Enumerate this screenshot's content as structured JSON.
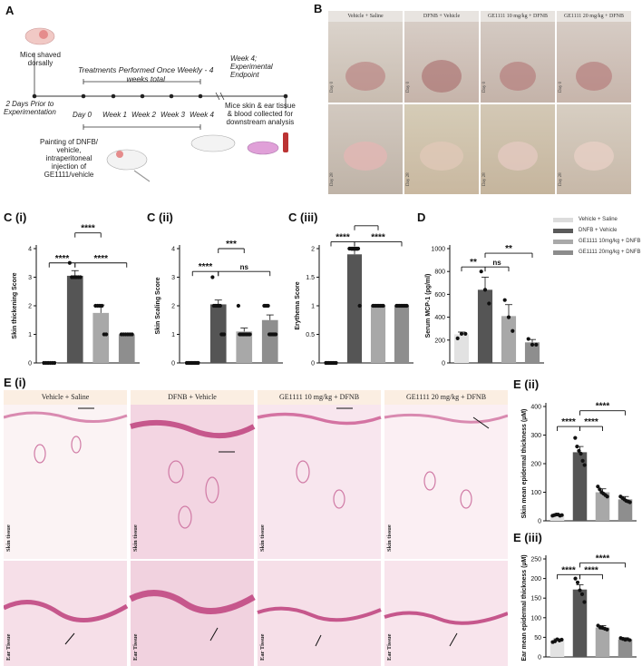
{
  "panel_labels": {
    "A": "A",
    "B": "B",
    "Ci": "C (i)",
    "Cii": "C (ii)",
    "Ciii": "C (iii)",
    "D": "D",
    "Ei": "E (i)",
    "Eii": "E (ii)",
    "Eiii": "E (iii)"
  },
  "schematic": {
    "shaved": "Mice shaved\ndorsally",
    "prior": "2 Days Prior to\nExperimentation",
    "treatments": "Treatments Performed Once Weekly - 4\nweeks total",
    "endpoint": "Week 4;\nExperimental\nEndpoint",
    "timepoints": [
      "Day 0",
      "Week 1",
      "Week 2",
      "Week 3",
      "Week 4"
    ],
    "painting": "Painting of DNFB/\nvehicle,\nintraperitoneal\ninjection of\nGE1111/vehicle",
    "collected": "Mice skin & ear tissue\n& blood collected for\ndownstream analysis"
  },
  "photos": {
    "headers": [
      "Vehicle + Saline",
      "DFNB + Vehicle",
      "GE1111 10 mg/kg + DFNB",
      "GE1111 20 mg/kg + DFNB"
    ],
    "days": [
      "Day 0",
      "Day 28"
    ]
  },
  "histology": {
    "headers": [
      "Vehicle + Saline",
      "DFNB + Vehicle",
      "GE1111 10 mg/kg + DFNB",
      "GE1111 20 mg/kg + DFNB"
    ],
    "row_labels": [
      "Skin tissue",
      "Ear Tissue"
    ]
  },
  "legend": {
    "items": [
      {
        "name": "Vehicle + Saline",
        "color": "#dcdcdc"
      },
      {
        "name": "DNFB + Vehicle",
        "color": "#5a5a5a"
      },
      {
        "name": "GE1111 10mg/kg + DNFB",
        "color": "#a9a9a9"
      },
      {
        "name": "GE1111 20mg/kg + DNFB",
        "color": "#8c8c8c"
      }
    ]
  },
  "colors": {
    "bar_colors": [
      "#e2e2e2",
      "#555555",
      "#a8a8a8",
      "#8e8e8e"
    ],
    "skin_pink": "#e9a9c9",
    "photo_bg": "#cfc6bd"
  },
  "chart_data": [
    {
      "id": "Ci",
      "type": "bar",
      "ylabel": "Skin thickening Score",
      "ylim": [
        0,
        4
      ],
      "yticks": [
        0,
        1,
        2,
        3,
        4
      ],
      "values": [
        0.0,
        3.05,
        1.75,
        1.0
      ],
      "errors": [
        0,
        0.18,
        0.28,
        0
      ],
      "points": [
        [
          0,
          0,
          0,
          0,
          0,
          0
        ],
        [
          3.5,
          3.0,
          3.0,
          3.0,
          3.0,
          3.0
        ],
        [
          2.0,
          2.0,
          2.0,
          2.0,
          1.0,
          1.0
        ],
        [
          1,
          1,
          1,
          1,
          1,
          1
        ]
      ],
      "sig": [
        {
          "a": 0,
          "b": 1,
          "label": "****",
          "y": 3.5
        },
        {
          "a": 1,
          "b": 3,
          "label": "****",
          "y": 3.5
        },
        {
          "a": 1,
          "b": 2,
          "label": "****",
          "y": 4.55
        }
      ]
    },
    {
      "id": "Cii",
      "type": "bar",
      "ylabel": "Skin Scaling Score",
      "ylim": [
        0,
        4
      ],
      "yticks": [
        0,
        1,
        2,
        3,
        4
      ],
      "values": [
        0.0,
        2.05,
        1.1,
        1.5
      ],
      "errors": [
        0,
        0.15,
        0.12,
        0.18
      ],
      "points": [
        [
          0,
          0,
          0,
          0,
          0,
          0,
          0,
          0,
          0,
          0
        ],
        [
          3,
          2,
          2,
          2,
          2,
          2,
          2,
          1,
          1,
          1
        ],
        [
          2,
          1,
          1,
          1,
          1,
          1,
          1,
          1,
          1,
          1
        ],
        [
          2,
          2,
          2,
          2,
          1,
          1,
          1,
          1,
          1,
          1
        ]
      ],
      "sig": [
        {
          "a": 0,
          "b": 1,
          "label": "****",
          "y": 3.2
        },
        {
          "a": 1,
          "b": 3,
          "label": "ns",
          "y": 3.2
        },
        {
          "a": 1,
          "b": 2,
          "label": "***",
          "y": 4.0
        }
      ]
    },
    {
      "id": "Ciii",
      "type": "bar",
      "ylabel": "Erythema Score",
      "ylim": [
        0,
        2
      ],
      "yticks": [
        0,
        0.5,
        1,
        1.5,
        2
      ],
      "values": [
        0.0,
        1.9,
        1.0,
        1.0
      ],
      "errors": [
        0,
        0.07,
        0,
        0
      ],
      "points": [
        [
          0,
          0,
          0,
          0,
          0,
          0,
          0,
          0
        ],
        [
          2,
          2,
          2,
          2,
          2,
          2,
          2,
          1
        ],
        [
          1,
          1,
          1,
          1,
          1,
          1,
          1,
          1
        ],
        [
          1,
          1,
          1,
          1,
          1,
          1,
          1,
          1
        ]
      ],
      "sig": [
        {
          "a": 0,
          "b": 1,
          "label": "****",
          "y": 2.12
        },
        {
          "a": 1,
          "b": 3,
          "label": "****",
          "y": 2.12
        },
        {
          "a": 1,
          "b": 2,
          "label": "****",
          "y": 2.4
        }
      ]
    },
    {
      "id": "D",
      "type": "bar",
      "ylabel": "Serum MCP-1 (pg/ml)",
      "ylim": [
        0,
        1000
      ],
      "yticks": [
        0,
        200,
        400,
        600,
        800,
        1000
      ],
      "values": [
        250,
        640,
        410,
        180
      ],
      "errors": [
        20,
        110,
        100,
        25
      ],
      "points": [
        [
          215,
          255,
          255
        ],
        [
          800,
          640,
          520
        ],
        [
          550,
          400,
          280
        ],
        [
          210,
          160,
          160
        ]
      ],
      "sig": [
        {
          "a": 0,
          "b": 1,
          "label": "**",
          "y": 840
        },
        {
          "a": 1,
          "b": 2,
          "label": "ns",
          "y": 840
        },
        {
          "a": 1,
          "b": 3,
          "label": "**",
          "y": 960
        }
      ]
    },
    {
      "id": "Eii",
      "type": "bar",
      "ylabel": "Skin mean epidermal thickness (µM)",
      "ylim": [
        0,
        400
      ],
      "yticks": [
        0,
        100,
        200,
        300,
        400
      ],
      "values": [
        20,
        240,
        100,
        75
      ],
      "errors": [
        3,
        20,
        12,
        10
      ],
      "points": [
        [
          18,
          20,
          22,
          22,
          18,
          20
        ],
        [
          290,
          260,
          245,
          235,
          210,
          195
        ],
        [
          120,
          110,
          100,
          95,
          90,
          85
        ],
        [
          85,
          80,
          75,
          70,
          68,
          65
        ]
      ],
      "sig": [
        {
          "a": 0,
          "b": 1,
          "label": "****",
          "y": 330
        },
        {
          "a": 1,
          "b": 2,
          "label": "****",
          "y": 330
        },
        {
          "a": 1,
          "b": 3,
          "label": "****",
          "y": 385
        }
      ]
    },
    {
      "id": "Eiii",
      "type": "bar",
      "ylabel": "Ear mean epidermal thickness (µM)",
      "ylim": [
        0,
        250
      ],
      "yticks": [
        0,
        50,
        100,
        150,
        200,
        250
      ],
      "values": [
        42,
        172,
        75,
        45
      ],
      "errors": [
        4,
        12,
        5,
        4
      ],
      "points": [
        [
          38,
          40,
          45,
          42,
          44
        ],
        [
          200,
          190,
          170,
          160,
          140
        ],
        [
          80,
          75,
          74,
          72,
          70
        ],
        [
          48,
          46,
          44,
          45,
          43
        ]
      ],
      "sig": [
        {
          "a": 0,
          "b": 1,
          "label": "****",
          "y": 210
        },
        {
          "a": 1,
          "b": 2,
          "label": "****",
          "y": 210
        },
        {
          "a": 1,
          "b": 3,
          "label": "****",
          "y": 240
        }
      ]
    }
  ]
}
